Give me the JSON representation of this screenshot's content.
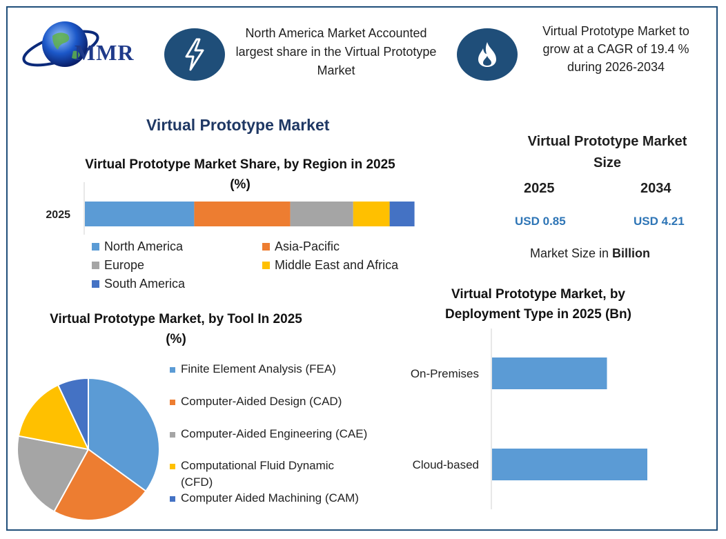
{
  "logo": {
    "text": "MMR"
  },
  "header": {
    "left_text": "North America Market Accounted largest share in the Virtual Prototype Market",
    "right_text": "Virtual Prototype Market to grow at a CAGR of 19.4 % during 2026-2034"
  },
  "main_title": "Virtual Prototype Market",
  "market_size": {
    "title": "Virtual Prototype Market Size",
    "year_1": "2025",
    "year_2": "2034",
    "value_1": "USD 0.85",
    "value_2": "USD 4.21",
    "note_prefix": "Market Size in ",
    "note_bold": "Billion"
  },
  "colors": {
    "blue": "#5b9bd5",
    "orange": "#ed7d31",
    "gray": "#a5a5a5",
    "yellow": "#ffc000",
    "darkblue": "#4472c4",
    "navy": "#1f4e79"
  },
  "chart_data": [
    {
      "type": "bar",
      "orientation": "horizontal",
      "stacked": true,
      "title": "Virtual Prototype Market Share, by Region in 2025 (%)",
      "categories": [
        "2025"
      ],
      "series": [
        {
          "name": "North America",
          "values": [
            33
          ],
          "color": "#5b9bd5"
        },
        {
          "name": "Asia-Pacific",
          "values": [
            29
          ],
          "color": "#ed7d31"
        },
        {
          "name": "Europe",
          "values": [
            19
          ],
          "color": "#a5a5a5"
        },
        {
          "name": "Middle East and Africa",
          "values": [
            11
          ],
          "color": "#ffc000"
        },
        {
          "name": "South America",
          "values": [
            7.5
          ],
          "color": "#4472c4"
        }
      ],
      "legend": "bottom"
    },
    {
      "type": "pie",
      "title": "Virtual Prototype Market, by Tool In 2025 (%)",
      "labels": [
        "Finite Element Analysis (FEA)",
        "Computer-Aided Design (CAD)",
        "Computer-Aided Engineering (CAE)",
        "Computational Fluid Dynamic (CFD)",
        "Computer Aided Machining (CAM)"
      ],
      "values": [
        35,
        23,
        20,
        15,
        7
      ],
      "colors": [
        "#5b9bd5",
        "#ed7d31",
        "#a5a5a5",
        "#ffc000",
        "#4472c4"
      ],
      "legend": "right"
    },
    {
      "type": "bar",
      "orientation": "horizontal",
      "title": "Virtual Prototype Market, by Deployment Type in 2025 (Bn)",
      "categories": [
        "On-Premises",
        "Cloud-based"
      ],
      "values": [
        0.37,
        0.5
      ],
      "color": "#5b9bd5",
      "xlim": [
        0,
        0.6
      ]
    }
  ]
}
